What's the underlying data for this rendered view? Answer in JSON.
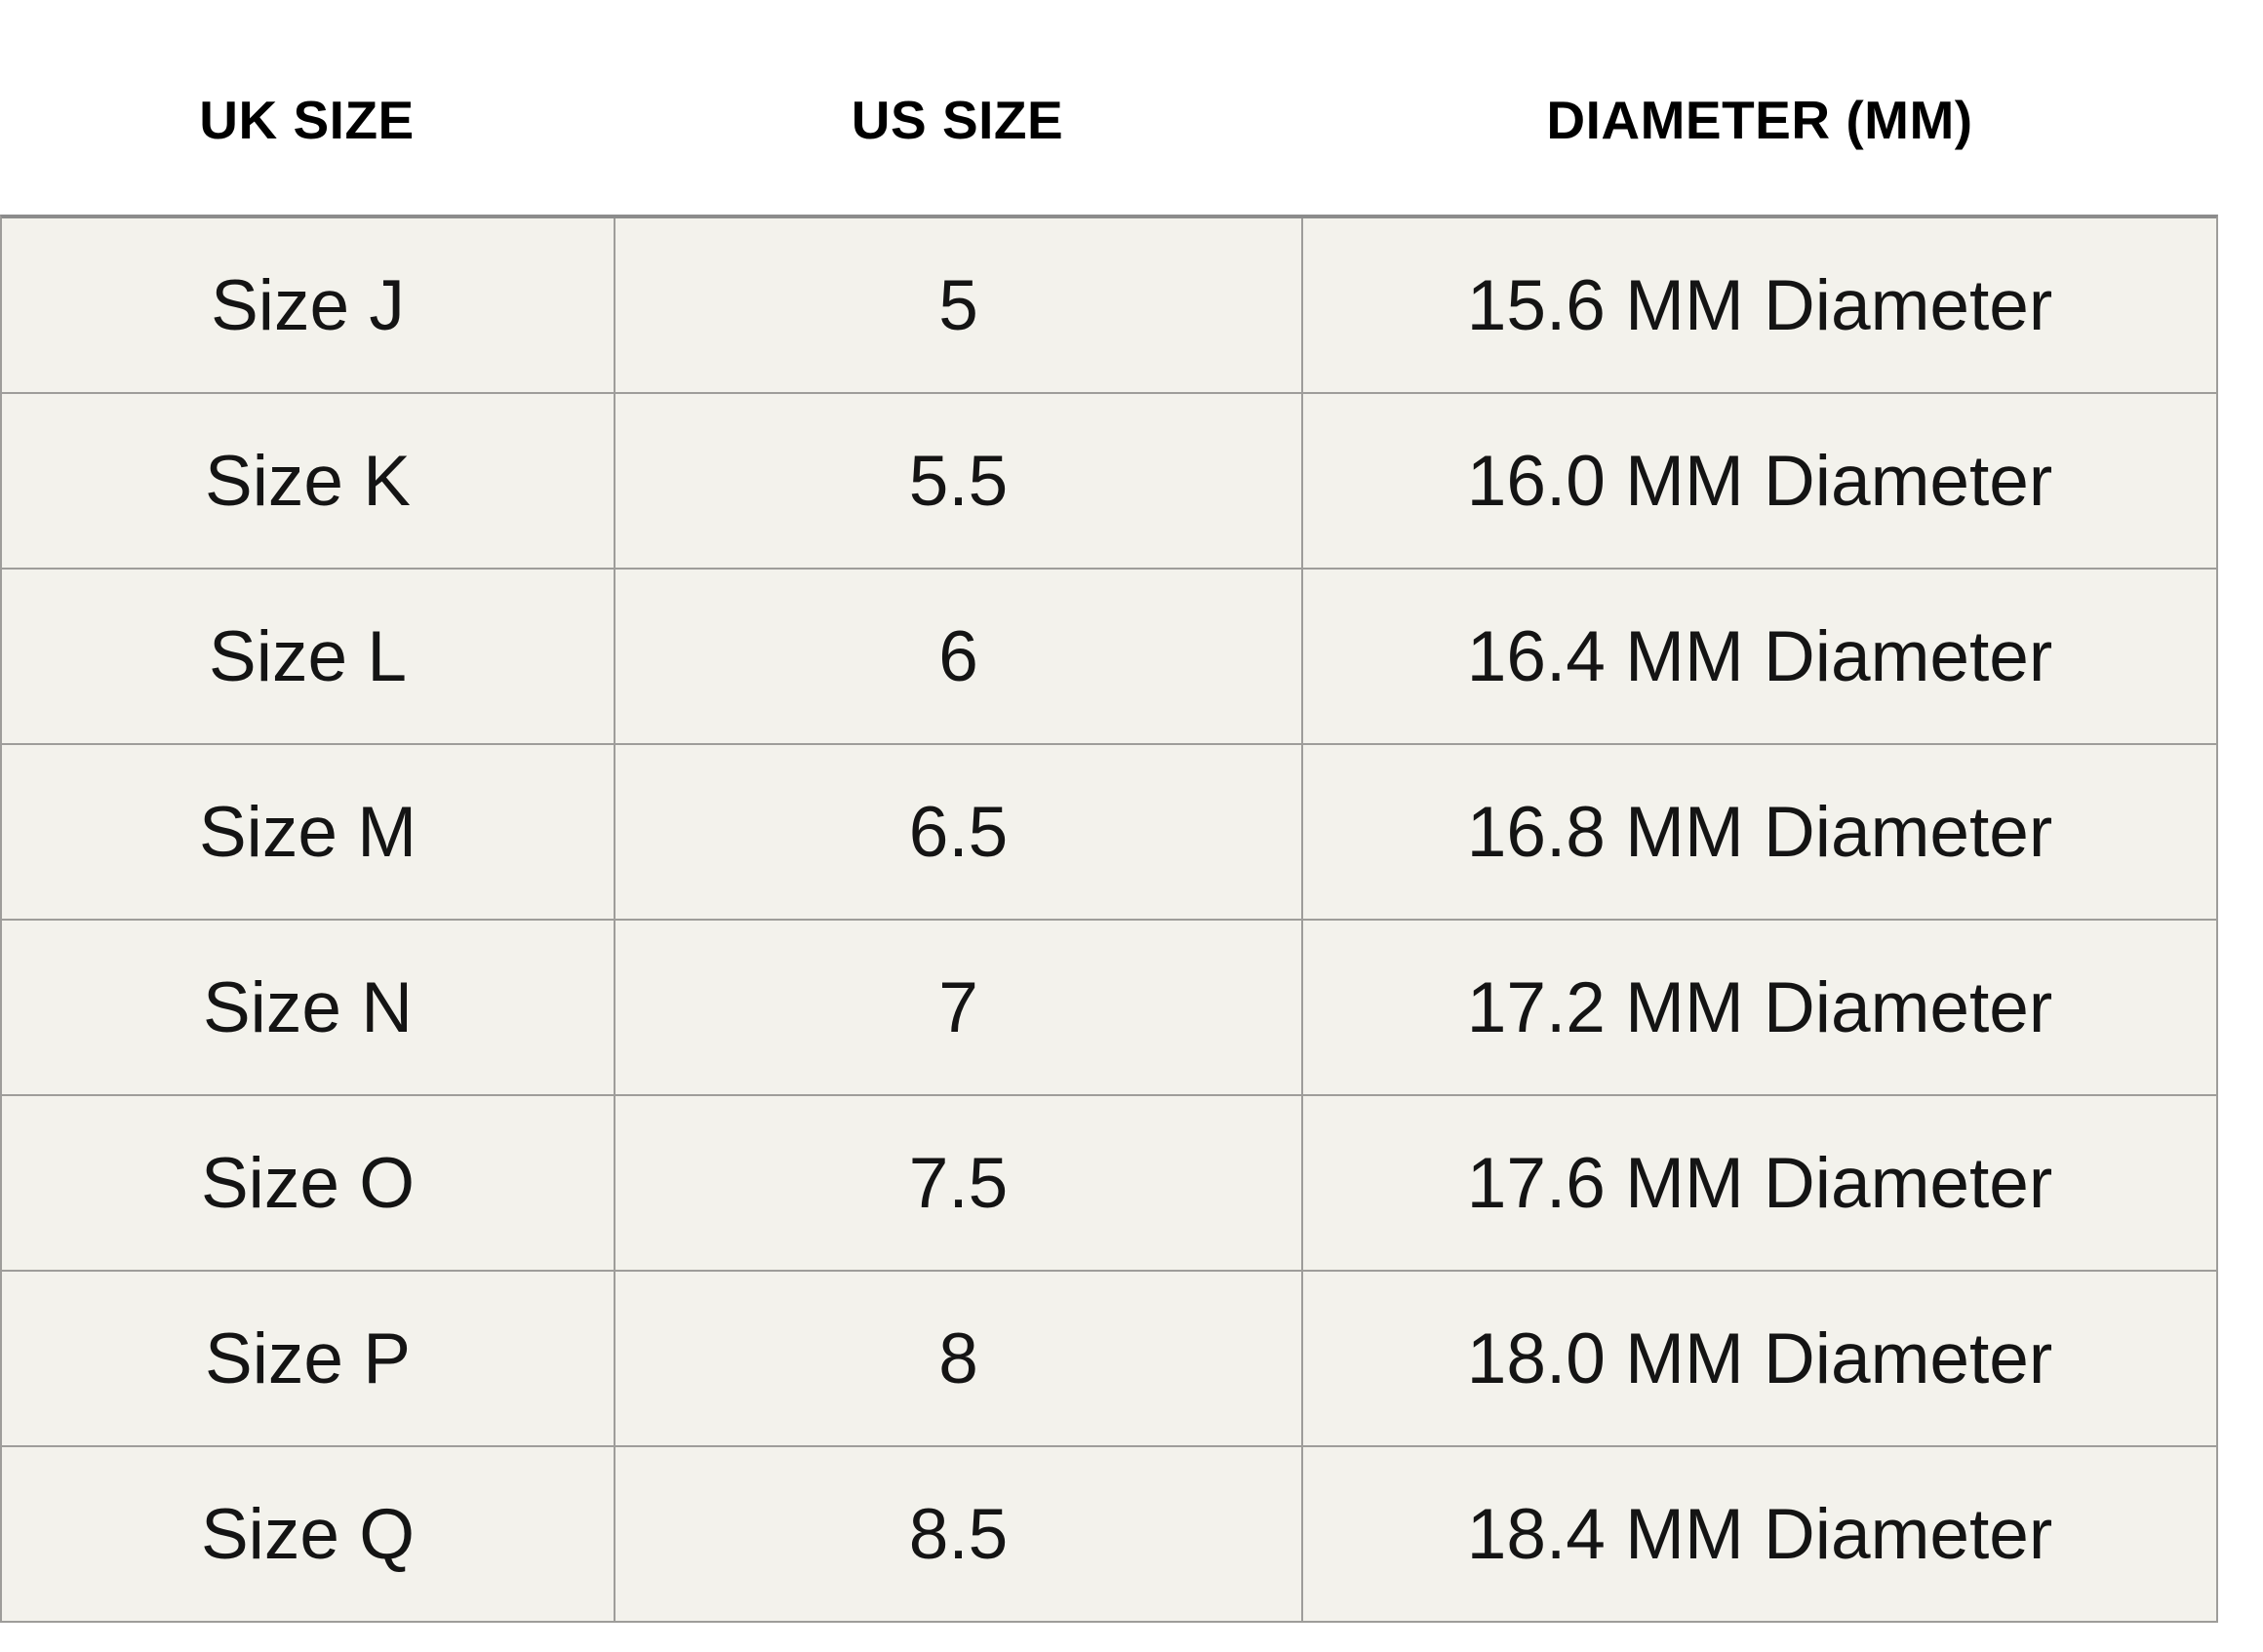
{
  "chart_data": {
    "type": "table",
    "columns": [
      "UK SIZE",
      "US SIZE",
      "DIAMETER (MM)"
    ],
    "rows": [
      [
        "Size J",
        "5",
        "15.6 MM Diameter"
      ],
      [
        "Size K",
        "5.5",
        "16.0 MM Diameter"
      ],
      [
        "Size L",
        "6",
        "16.4 MM Diameter"
      ],
      [
        "Size M",
        "6.5",
        "16.8 MM Diameter"
      ],
      [
        "Size N",
        "7",
        "17.2 MM Diameter"
      ],
      [
        "Size O",
        "7.5",
        "17.6 MM Diameter"
      ],
      [
        "Size P",
        "8",
        "18.0 MM Diameter"
      ],
      [
        "Size Q",
        "8.5",
        "18.4 MM Diameter"
      ]
    ],
    "layout": {
      "grid": "on",
      "header_position": "above-table-no-borders"
    }
  },
  "colors": {
    "page_background": "#ffffff",
    "cell_background": "#f3f2ec",
    "grid_line": "#9e9d9a",
    "top_border": "#8c8c8c",
    "header_text": "#000000",
    "cell_text": "#141414"
  }
}
